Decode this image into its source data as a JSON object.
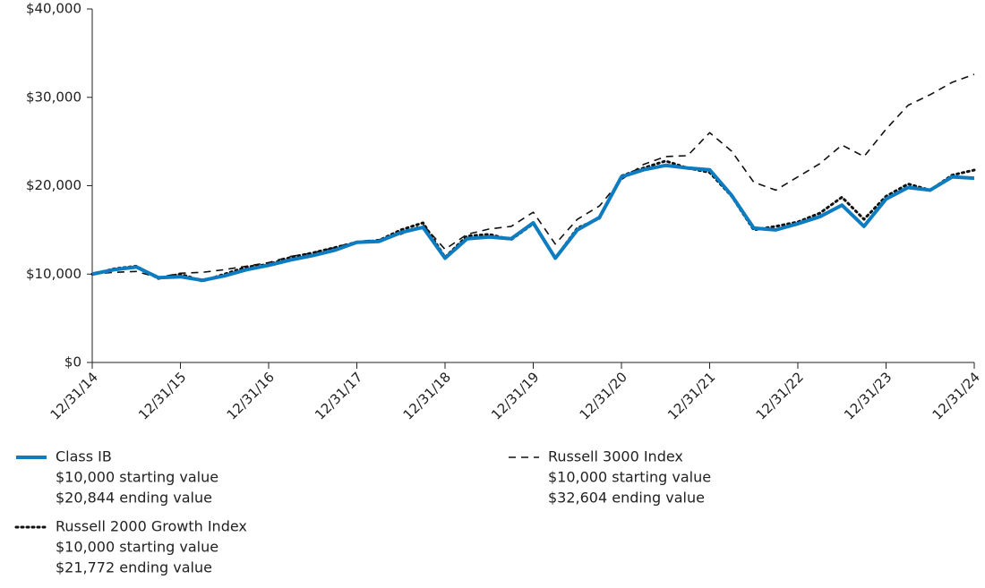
{
  "chart_data": {
    "type": "line",
    "categories": [
      "12/31/14",
      null,
      null,
      null,
      "12/31/15",
      null,
      null,
      null,
      "12/31/16",
      null,
      null,
      null,
      "12/31/17",
      null,
      null,
      null,
      "12/31/18",
      null,
      null,
      null,
      "12/31/19",
      null,
      null,
      null,
      "12/31/20",
      null,
      null,
      null,
      "12/31/21",
      null,
      null,
      null,
      "12/31/22",
      null,
      null,
      null,
      "12/31/23",
      null,
      null,
      null,
      "12/31/24"
    ],
    "ylim": [
      0,
      40000
    ],
    "yticks": [
      {
        "value": 0,
        "label": "$0"
      },
      {
        "value": 10000,
        "label": "$10,000"
      },
      {
        "value": 20000,
        "label": "$20,000"
      },
      {
        "value": 30000,
        "label": "$30,000"
      },
      {
        "value": 40000,
        "label": "$40,000"
      }
    ],
    "series": [
      {
        "name": "Class IB",
        "color": "#0e7cc0",
        "style": "solid",
        "notes": [
          "$10,000 starting value",
          "$20,844 ending value"
        ],
        "values": [
          10000,
          10500,
          10800,
          9600,
          9700,
          9300,
          9800,
          10500,
          11000,
          11600,
          12100,
          12700,
          13600,
          13700,
          14700,
          15300,
          11800,
          14000,
          14200,
          14000,
          15800,
          11800,
          15000,
          16400,
          21000,
          21800,
          22300,
          22000,
          21800,
          18900,
          15200,
          15000,
          15700,
          16500,
          17800,
          15400,
          18500,
          19800,
          19500,
          21000,
          20844
        ]
      },
      {
        "name": "Russell 2000 Growth Index",
        "color": "#111111",
        "style": "dotted",
        "notes": [
          "$10,000 starting value",
          "$21,772 ending value"
        ],
        "values": [
          10000,
          10600,
          10900,
          9500,
          10000,
          9200,
          10000,
          10800,
          11100,
          11900,
          12400,
          13000,
          13600,
          13800,
          15000,
          15800,
          11900,
          14300,
          14500,
          13900,
          15700,
          11800,
          15200,
          16300,
          21100,
          22000,
          22800,
          22000,
          21500,
          18800,
          15000,
          15400,
          15900,
          16900,
          18700,
          16200,
          18800,
          20200,
          19500,
          21200,
          21772
        ]
      },
      {
        "name": "Russell 3000 Index",
        "color": "#111111",
        "style": "dashed",
        "notes": [
          "$10,000 starting value",
          "$32,604 ending value"
        ],
        "values": [
          10000,
          10200,
          10300,
          9600,
          10100,
          10200,
          10500,
          10900,
          11300,
          12000,
          12400,
          13000,
          13700,
          13900,
          14500,
          15600,
          12800,
          14500,
          15100,
          15400,
          17000,
          13400,
          16200,
          17700,
          20700,
          22400,
          23300,
          23400,
          26000,
          23900,
          20400,
          19500,
          21000,
          22500,
          24600,
          23300,
          26400,
          29100,
          30300,
          31700,
          32604
        ]
      }
    ]
  }
}
